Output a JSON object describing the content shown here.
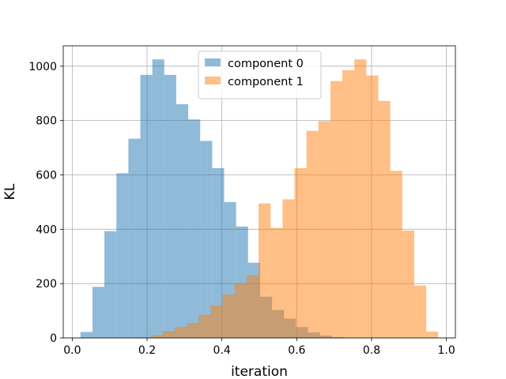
{
  "chart_data": {
    "type": "histogram",
    "title": "",
    "xlabel": "iteration",
    "ylabel": "KL",
    "xlim": [
      -0.024,
      1.024
    ],
    "ylim": [
      0,
      1075
    ],
    "xticks": [
      0.0,
      0.2,
      0.4,
      0.6,
      0.8,
      1.0
    ],
    "xtick_labels": [
      "0.0",
      "0.2",
      "0.4",
      "0.6",
      "0.8",
      "1.0"
    ],
    "yticks": [
      0,
      200,
      400,
      600,
      800,
      1000
    ],
    "ytick_labels": [
      "0",
      "200",
      "400",
      "600",
      "800",
      "1000"
    ],
    "grid": true,
    "legend_position": "top-center",
    "series": [
      {
        "name": "component 0",
        "color": "#1f77b4",
        "alpha": 0.5,
        "bin_edges": [
          0.022,
          0.054,
          0.086,
          0.118,
          0.15,
          0.182,
          0.214,
          0.246,
          0.278,
          0.31,
          0.342,
          0.374,
          0.406,
          0.438,
          0.47,
          0.502,
          0.534,
          0.566,
          0.598,
          0.63,
          0.662,
          0.694,
          0.726
        ],
        "counts": [
          22,
          188,
          393,
          606,
          733,
          968,
          1025,
          968,
          860,
          804,
          725,
          625,
          500,
          410,
          277,
          152,
          103,
          71,
          40,
          20,
          9,
          3
        ]
      },
      {
        "name": "component 1",
        "color": "#ff7f0e",
        "alpha": 0.5,
        "bin_edges": [
          0.178,
          0.21,
          0.242,
          0.274,
          0.306,
          0.338,
          0.37,
          0.402,
          0.434,
          0.466,
          0.498,
          0.53,
          0.562,
          0.594,
          0.626,
          0.658,
          0.69,
          0.722,
          0.754,
          0.786,
          0.818,
          0.85,
          0.882,
          0.914,
          0.946,
          0.978
        ],
        "counts": [
          3,
          10,
          25,
          40,
          55,
          85,
          120,
          160,
          200,
          230,
          495,
          405,
          510,
          625,
          762,
          798,
          945,
          985,
          1025,
          966,
          872,
          615,
          395,
          193,
          23
        ]
      }
    ]
  }
}
